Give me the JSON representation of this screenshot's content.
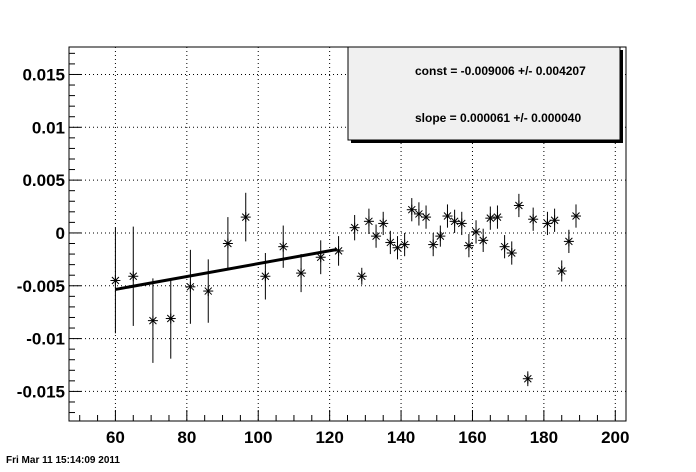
{
  "chart_data": {
    "type": "scatter",
    "title": "",
    "xlabel": "",
    "ylabel": "",
    "xlim": [
      47,
      203
    ],
    "ylim": [
      -0.0178,
      0.0176
    ],
    "xticks": [
      60,
      80,
      100,
      120,
      140,
      160,
      180,
      200
    ],
    "xtick_labels": [
      "60",
      "80",
      "100",
      "120",
      "140",
      "160",
      "180",
      "200"
    ],
    "yticks": [
      -0.015,
      -0.01,
      -0.005,
      0,
      0.005,
      0.01,
      0.015
    ],
    "ytick_labels": [
      "-0.015",
      "-0.01",
      "-0.005",
      "0",
      "0.005",
      "0.01",
      "0.015"
    ],
    "grid": true,
    "marker": "asterisk",
    "series": [
      {
        "points": [
          {
            "x": 60,
            "y": -0.0045,
            "err": 0.005
          },
          {
            "x": 65,
            "y": -0.0041,
            "err": 0.0047
          },
          {
            "x": 70.5,
            "y": -0.0083,
            "err": 0.004
          },
          {
            "x": 75.5,
            "y": -0.0081,
            "err": 0.0038
          },
          {
            "x": 81,
            "y": -0.0051,
            "err": 0.0035
          },
          {
            "x": 86,
            "y": -0.0055,
            "err": 0.003
          },
          {
            "x": 91.5,
            "y": -0.001,
            "err": 0.0025
          },
          {
            "x": 96.5,
            "y": 0.0015,
            "err": 0.0023
          },
          {
            "x": 102,
            "y": -0.0041,
            "err": 0.0022
          },
          {
            "x": 107,
            "y": -0.0013,
            "err": 0.002
          },
          {
            "x": 112,
            "y": -0.0038,
            "err": 0.0018
          },
          {
            "x": 117.5,
            "y": -0.0023,
            "err": 0.0016
          },
          {
            "x": 122.5,
            "y": -0.0017,
            "err": 0.0014
          },
          {
            "x": 127,
            "y": 0.0005,
            "err": 0.0012
          },
          {
            "x": 129,
            "y": -0.0041,
            "err": 0.0008
          },
          {
            "x": 131,
            "y": 0.0011,
            "err": 0.0012
          },
          {
            "x": 133,
            "y": -0.0003,
            "err": 0.0011
          },
          {
            "x": 135,
            "y": 0.0009,
            "err": 0.0011
          },
          {
            "x": 137,
            "y": -0.0009,
            "err": 0.0011
          },
          {
            "x": 139,
            "y": -0.0014,
            "err": 0.0011
          },
          {
            "x": 141,
            "y": -0.0011,
            "err": 0.0011
          },
          {
            "x": 143,
            "y": 0.0022,
            "err": 0.0011
          },
          {
            "x": 145,
            "y": 0.0018,
            "err": 0.0011
          },
          {
            "x": 147,
            "y": 0.0015,
            "err": 0.0011
          },
          {
            "x": 149,
            "y": -0.0011,
            "err": 0.0011
          },
          {
            "x": 151,
            "y": -0.0003,
            "err": 0.001
          },
          {
            "x": 153,
            "y": 0.0016,
            "err": 0.0011
          },
          {
            "x": 155,
            "y": 0.0011,
            "err": 0.0011
          },
          {
            "x": 157,
            "y": 0.0009,
            "err": 0.0011
          },
          {
            "x": 159,
            "y": -0.0012,
            "err": 0.0011
          },
          {
            "x": 161,
            "y": 0.0001,
            "err": 0.0011
          },
          {
            "x": 163,
            "y": -0.0007,
            "err": 0.0011
          },
          {
            "x": 165,
            "y": 0.0014,
            "err": 0.0011
          },
          {
            "x": 167,
            "y": 0.0015,
            "err": 0.0011
          },
          {
            "x": 169,
            "y": -0.0013,
            "err": 0.0011
          },
          {
            "x": 171,
            "y": -0.0019,
            "err": 0.0011
          },
          {
            "x": 173,
            "y": 0.0026,
            "err": 0.0011
          },
          {
            "x": 175.5,
            "y": -0.0138,
            "err": 0.0007
          },
          {
            "x": 177,
            "y": 0.0013,
            "err": 0.0011
          },
          {
            "x": 181,
            "y": 0.0009,
            "err": 0.0011
          },
          {
            "x": 183,
            "y": 0.0012,
            "err": 0.0011
          },
          {
            "x": 185,
            "y": -0.0036,
            "err": 0.001
          },
          {
            "x": 187,
            "y": -0.0008,
            "err": 0.0011
          },
          {
            "x": 189,
            "y": 0.0016,
            "err": 0.0011
          }
        ]
      }
    ],
    "fit": {
      "const": -0.009006,
      "slope": 6.1e-05,
      "x_range": [
        60,
        122
      ],
      "color": "#000000"
    },
    "stats_box": {
      "lines": [
        "const = -0.009006 +/- 0.004207",
        "slope = 0.000061 +/- 0.000040"
      ],
      "background": "#f0f0f0",
      "placement": "top-right"
    }
  },
  "footer": {
    "timestamp": "Fri Mar 11 15:14:09 2011"
  }
}
